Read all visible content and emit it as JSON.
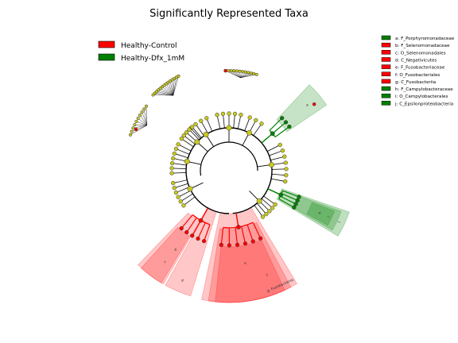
{
  "chart_data": {
    "type": "cladogram",
    "title": "Significantly Represented Taxa",
    "groups": [
      {
        "name": "Healthy-Control",
        "color": "#ff0000"
      },
      {
        "name": "Healthy-Dfx_1mM",
        "color": "#008000"
      }
    ],
    "taxa": [
      {
        "key": "a",
        "name": "F_Porphyromonadaceae",
        "group": "Healthy-Dfx_1mM"
      },
      {
        "key": "b",
        "name": "F_Selenomonadaceae",
        "group": "Healthy-Control"
      },
      {
        "key": "c",
        "name": "O_Selenomonadales",
        "group": "Healthy-Control"
      },
      {
        "key": "d",
        "name": "C_Negativicutes",
        "group": "Healthy-Control"
      },
      {
        "key": "e",
        "name": "F_Fusobacteriaceae",
        "group": "Healthy-Control"
      },
      {
        "key": "f",
        "name": "O_Fusobacteriales",
        "group": "Healthy-Control"
      },
      {
        "key": "g",
        "name": "C_Fusobacteriia",
        "group": "Healthy-Control"
      },
      {
        "key": "h",
        "name": "F_Campylobacteraceae",
        "group": "Healthy-Dfx_1mM"
      },
      {
        "key": "i",
        "name": "O_Campylobacterales",
        "group": "Healthy-Dfx_1mM"
      },
      {
        "key": "j",
        "name": "C_Epsilonproteobacteria",
        "group": "Healthy-Dfx_1mM"
      }
    ],
    "legend_labels": [
      "a: F_Porphyromonadaceae",
      "b: F_Selenomonadaceae",
      "c: O_Selenomonadales",
      "d: C_Negativicutes",
      "e: F_Fusobacteriaceae",
      "f: O_Fusobacteriales",
      "g: C_Fusobacteriia",
      "h: F_Campylobacteraceae",
      "i: O_Campylobacterales",
      "j: C_Epsilonproteobacteria"
    ],
    "clade_labels": [
      "a",
      "b",
      "c",
      "d",
      "e",
      "f",
      "g",
      "h",
      "i",
      "j",
      "g: Fusobacteriia"
    ],
    "colors": {
      "control": "#ff0000",
      "dfx": "#008000",
      "node": "#c8c820",
      "edge": "#000000"
    }
  }
}
